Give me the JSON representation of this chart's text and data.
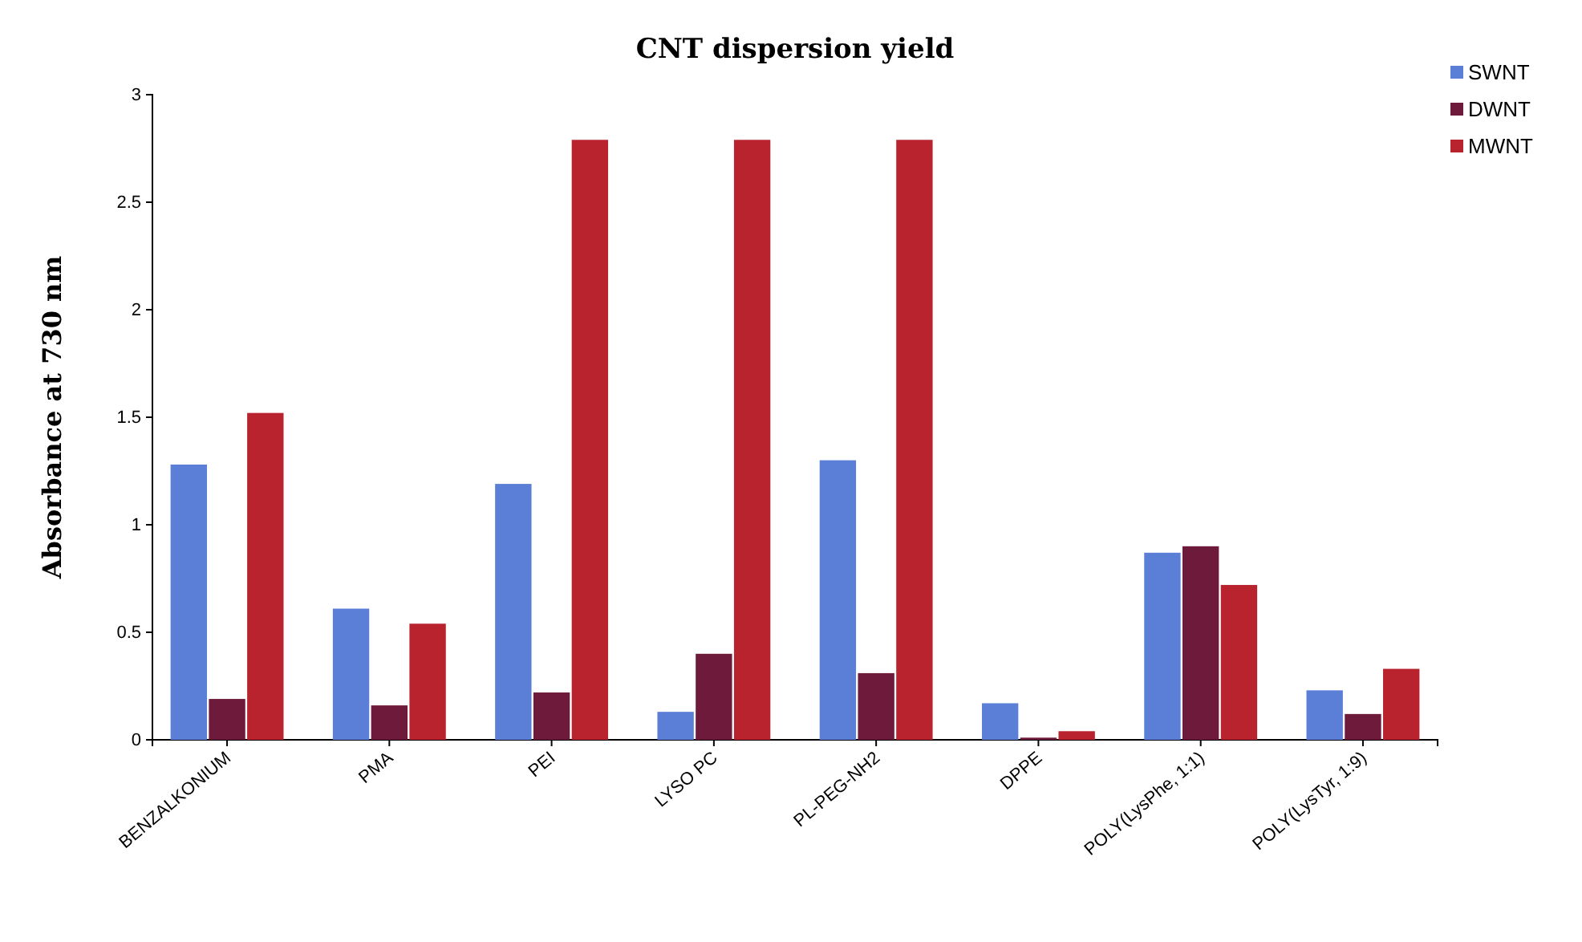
{
  "chart_data": {
    "type": "bar",
    "title": "CNT dispersion yield",
    "ylabel": "Absorbance at 730 nm",
    "categories": [
      "BENZALKONIUM",
      "PMA",
      "PEI",
      "LYSO PC",
      "PL-PEG-NH2",
      "DPPE",
      "POLY(LysPhe, 1:1)",
      "POLY(LysTyr, 1:9)"
    ],
    "series": [
      {
        "name": "SWNT",
        "color": "#5b7fd6",
        "values": [
          1.28,
          0.61,
          1.19,
          0.13,
          1.3,
          0.17,
          0.87,
          0.23
        ]
      },
      {
        "name": "DWNT",
        "color": "#6e1a3a",
        "values": [
          0.19,
          0.16,
          0.22,
          0.4,
          0.31,
          0.01,
          0.9,
          0.12
        ]
      },
      {
        "name": "MWNT",
        "color": "#b8232e",
        "values": [
          1.52,
          0.54,
          2.79,
          2.79,
          2.79,
          0.04,
          0.72,
          0.33
        ]
      }
    ],
    "ylim": [
      0,
      3
    ],
    "yticks": [
      0,
      0.5,
      1,
      1.5,
      2,
      2.5,
      3
    ],
    "legend": "top right"
  }
}
